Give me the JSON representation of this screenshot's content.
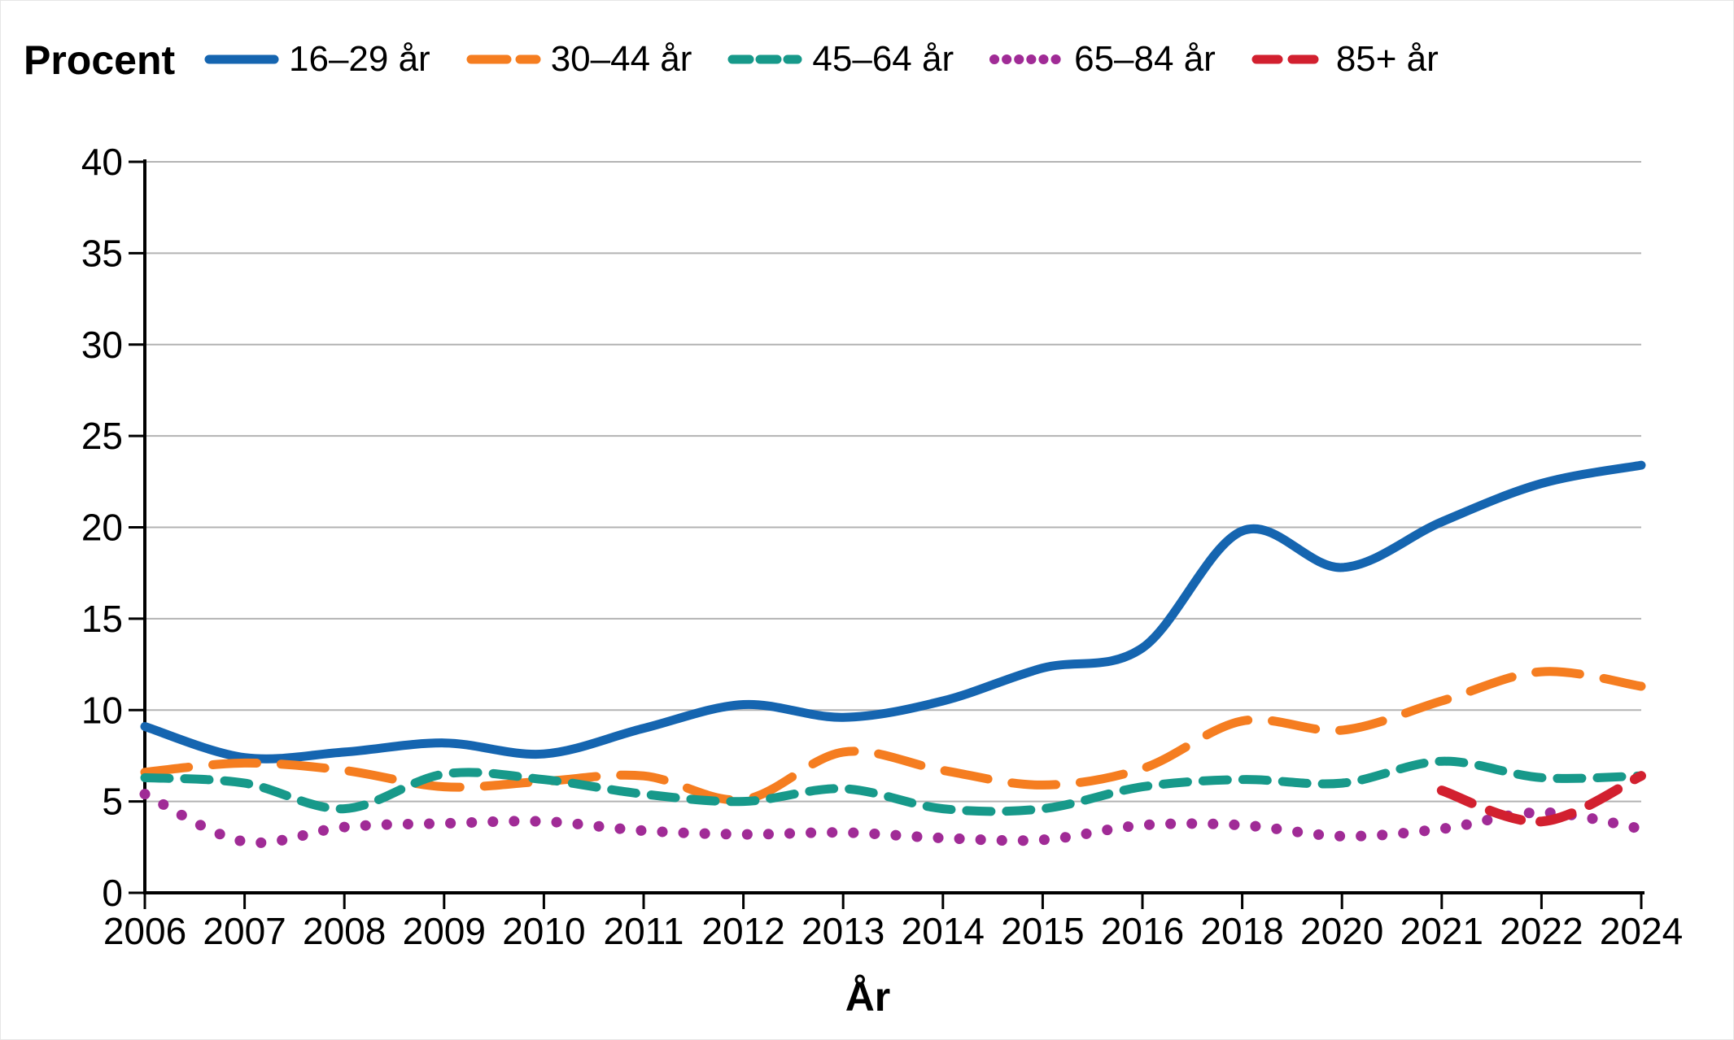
{
  "figure": {
    "background": "#ffffff",
    "grid_color": "#b3b3b3",
    "axis_color": "#000000"
  },
  "chart_data": {
    "type": "line",
    "title": "",
    "ylabel": "Procent",
    "xlabel": "År",
    "legend_position": "top",
    "grid": "horizontal",
    "ylim": [
      0,
      40
    ],
    "yticks": [
      0,
      5,
      10,
      15,
      20,
      25,
      30,
      35,
      40
    ],
    "x_categories": [
      "2006",
      "2007",
      "2008",
      "2009",
      "2010",
      "2011",
      "2012",
      "2013",
      "2014",
      "2015",
      "2016",
      "2018",
      "2020",
      "2021",
      "2022",
      "2024"
    ],
    "series": [
      {
        "name": "16–29 år",
        "color": "#1565b0",
        "dash": "solid",
        "values": [
          9.1,
          7.4,
          7.7,
          8.2,
          7.6,
          9.0,
          10.3,
          9.6,
          10.5,
          12.3,
          13.4,
          19.8,
          17.8,
          20.3,
          22.4,
          23.4
        ]
      },
      {
        "name": "30–44 år",
        "color": "#f57d20",
        "dash": "longdash",
        "values": [
          6.6,
          7.1,
          6.7,
          5.8,
          6.1,
          6.4,
          5.1,
          7.7,
          6.7,
          5.9,
          6.8,
          9.4,
          8.9,
          10.5,
          12.1,
          11.3
        ]
      },
      {
        "name": "45–64 år",
        "color": "#17998a",
        "dash": "dash",
        "values": [
          6.3,
          6.0,
          4.6,
          6.5,
          6.2,
          5.4,
          5.0,
          5.7,
          4.6,
          4.6,
          5.8,
          6.2,
          6.0,
          7.2,
          6.3,
          6.4
        ]
      },
      {
        "name": "65–84 år",
        "color": "#a02b96",
        "dash": "dot",
        "values": [
          5.4,
          2.8,
          3.6,
          3.8,
          3.9,
          3.4,
          3.2,
          3.3,
          3.0,
          2.9,
          3.7,
          3.7,
          3.1,
          3.5,
          4.4,
          3.5
        ]
      },
      {
        "name": "85+ år",
        "color": "#d2202f",
        "dash": "mediumdash",
        "values": [
          null,
          null,
          null,
          null,
          null,
          null,
          null,
          null,
          null,
          null,
          null,
          null,
          null,
          5.6,
          3.9,
          6.4
        ]
      }
    ]
  }
}
